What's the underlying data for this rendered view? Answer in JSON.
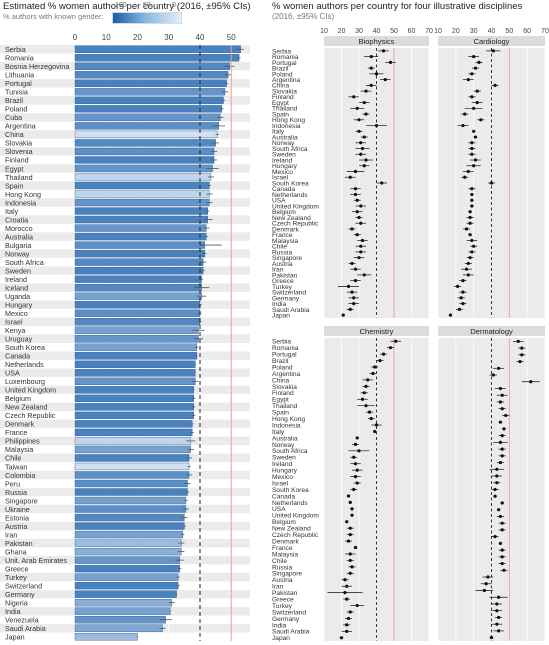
{
  "left": {
    "title": "Estimated % women authors per country (2016, ±95% CIs)",
    "legend_label": "% authors with known gender:",
    "legend_ticks": [
      "100",
      "50",
      "0"
    ],
    "accent_color": "#3a7cc0",
    "ref_color": "#e8a090"
  },
  "right": {
    "title": "% women authors per country for four illustrative disciplines",
    "subtitle": "(2016, ±95% CIs)"
  },
  "chart_data": [
    {
      "type": "bar",
      "orientation": "horizontal",
      "title": "Estimated % women authors per country (2016, ±95% CIs)",
      "xlabel": "",
      "ylabel": "",
      "xlim": [
        0,
        56
      ],
      "xticks": [
        0,
        10,
        20,
        30,
        40,
        50
      ],
      "reference_lines": [
        {
          "value": 40,
          "style": "dashed"
        },
        {
          "value": 50,
          "style": "solid-light"
        }
      ],
      "categories": [
        "Serbia",
        "Romania",
        "Bosnia Herzegovina",
        "Lithuania",
        "Portugal",
        "Tunisia",
        "Brazil",
        "Poland",
        "Cuba",
        "Argentina",
        "China",
        "Slovakia",
        "Slovenia",
        "Finland",
        "Egypt",
        "Thailand",
        "Spain",
        "Hong Kong",
        "Indonesia",
        "Italy",
        "Croatia",
        "Morocco",
        "Australia",
        "Bulgaria",
        "Norway",
        "South Africa",
        "Sweden",
        "Ireland",
        "Iceland",
        "Uganda",
        "Hungary",
        "Mexico",
        "Israel",
        "Kenya",
        "Uruguay",
        "South Korea",
        "Canada",
        "Netherlands",
        "USA",
        "Luxembourg",
        "United Kingdom",
        "Belgium",
        "New Zealand",
        "Czech Republic",
        "Denmark",
        "France",
        "Philippines",
        "Malaysia",
        "Chile",
        "Taiwan",
        "Colombia",
        "Peru",
        "Russia",
        "Singapore",
        "Ukraine",
        "Estonia",
        "Austria",
        "Iran",
        "Pakistan",
        "Ghana",
        "Unit. Arab Emirates",
        "Greece",
        "Turkey",
        "Switzerland",
        "Germany",
        "Nigeria",
        "India",
        "Venezuela",
        "Saudi Arabia",
        "Japan"
      ],
      "values": [
        53,
        52.5,
        49.5,
        49,
        48.5,
        48,
        47.5,
        47,
        46.5,
        46,
        45.5,
        45,
        44.5,
        44.5,
        44,
        43.5,
        43,
        43,
        43,
        42.5,
        42.5,
        42,
        42,
        41.5,
        41.5,
        41,
        41,
        40.5,
        40.5,
        40.5,
        40,
        40,
        40,
        39.5,
        39.5,
        39,
        39,
        38.5,
        38.5,
        38.5,
        38,
        38,
        38,
        38,
        37.5,
        37.5,
        37,
        37,
        36.5,
        36.5,
        36.5,
        36,
        36,
        35.5,
        35.5,
        35,
        35,
        34.5,
        34,
        34,
        33.5,
        33.5,
        33,
        33,
        32.5,
        31,
        30.5,
        29,
        28,
        20
      ],
      "ci_low": [
        52,
        52,
        48,
        48,
        48,
        47,
        47,
        46.5,
        45.5,
        44,
        45,
        44,
        43.5,
        43.5,
        42,
        42.5,
        42.5,
        42,
        42,
        42,
        41,
        41,
        41.5,
        40,
        41,
        40,
        40.5,
        40,
        38,
        39,
        39.5,
        39.5,
        39.5,
        37.5,
        38,
        38.5,
        38.8,
        38.2,
        38.4,
        37.5,
        37.8,
        37.5,
        37.5,
        37.5,
        37,
        37,
        35.5,
        36,
        35.5,
        36,
        35.5,
        35,
        35.5,
        35,
        34.5,
        34,
        34.5,
        34,
        33,
        33,
        32,
        33,
        32.5,
        32.5,
        32.3,
        30,
        30.3,
        27,
        27,
        19.8
      ],
      "ci_high": [
        54,
        53,
        51,
        50,
        49,
        49,
        48,
        47.5,
        47.5,
        48,
        46,
        46,
        45.5,
        45.5,
        46,
        44.5,
        43.5,
        44,
        44,
        43,
        44,
        43,
        42.5,
        47,
        42,
        42,
        41.5,
        41,
        43,
        42,
        40.5,
        40.5,
        40.5,
        41.5,
        41,
        39.5,
        39.2,
        38.8,
        38.6,
        39.5,
        38.2,
        38.5,
        38.5,
        38.5,
        38,
        38,
        38.5,
        38,
        37.5,
        37,
        37.5,
        37,
        36.5,
        36,
        36.5,
        36,
        35.5,
        35,
        35,
        35,
        35,
        34,
        33.5,
        33.5,
        32.7,
        32,
        30.7,
        31,
        29,
        20.2
      ],
      "known_gender_pct": [
        85,
        85,
        80,
        80,
        85,
        70,
        85,
        85,
        70,
        75,
        10,
        80,
        75,
        85,
        70,
        20,
        85,
        20,
        70,
        85,
        85,
        70,
        85,
        75,
        85,
        80,
        85,
        85,
        80,
        60,
        85,
        75,
        80,
        60,
        70,
        60,
        85,
        85,
        85,
        70,
        85,
        85,
        85,
        85,
        85,
        85,
        20,
        60,
        85,
        10,
        75,
        75,
        85,
        60,
        75,
        80,
        85,
        60,
        40,
        50,
        70,
        85,
        60,
        85,
        85,
        50,
        60,
        70,
        55,
        40
      ]
    },
    {
      "type": "scatter",
      "subplots": true,
      "title": "% women authors per country for four illustrative disciplines",
      "subtitle": "(2016, ±95% CIs)",
      "xlim": [
        10,
        70
      ],
      "xticks": [
        10,
        20,
        30,
        40,
        50,
        60,
        70
      ],
      "reference_lines": [
        {
          "value": 40,
          "style": "dashed"
        },
        {
          "value": 50,
          "style": "solid-light"
        }
      ],
      "panels": [
        {
          "name": "Biophysics",
          "countries": [
            "Serbia",
            "Romania",
            "Portugal",
            "Brazil",
            "Poland",
            "Argentina",
            "China",
            "Slovakia",
            "Finland",
            "Egypt",
            "Thailand",
            "Spain",
            "Hong Kong",
            "Indonesia",
            "Italy",
            "Australia",
            "Norway",
            "South Africa",
            "Sweden",
            "Ireland",
            "Hungary",
            "Mexico",
            "Israel",
            "South Korea",
            "Canada",
            "Netherlands",
            "USA",
            "United Kingdom",
            "Belgium",
            "New Zealand",
            "Czech Republic",
            "Denmark",
            "France",
            "Malaysia",
            "Chile",
            "Russia",
            "Singapore",
            "Austria",
            "Iran",
            "Pakistan",
            "Greece",
            "Turkey",
            "Switzerland",
            "Germany",
            "India",
            "Saudi Arabia",
            "Japan"
          ],
          "values": [
            44,
            37,
            48,
            37,
            40,
            45,
            37,
            34,
            27,
            33,
            29,
            34,
            30,
            40,
            30,
            33,
            31,
            32,
            31,
            34,
            33,
            28,
            25,
            43,
            28,
            28,
            29,
            31,
            29,
            30,
            31,
            26,
            29,
            32,
            31,
            31,
            30,
            26,
            28,
            33,
            28,
            24,
            26,
            27,
            27,
            25,
            21
          ],
          "ci_half": [
            3,
            4,
            3,
            2,
            4,
            3,
            3,
            3,
            3,
            3,
            4,
            2,
            3,
            6,
            2,
            2,
            3,
            4,
            3,
            4,
            3,
            5,
            3,
            3,
            3,
            3,
            2,
            3,
            3,
            2,
            3,
            2,
            2,
            3,
            3,
            3,
            3,
            2,
            3,
            4,
            3,
            6,
            3,
            3,
            3,
            2,
            1
          ]
        },
        {
          "name": "Cardiology",
          "countries": [
            "Serbia",
            "Romania",
            "Portugal",
            "Brazil",
            "Poland",
            "Argentina",
            "China",
            "Slovakia",
            "Finland",
            "Egypt",
            "Thailand",
            "Spain",
            "Hong Kong",
            "Indonesia",
            "Italy",
            "Australia",
            "Norway",
            "South Africa",
            "Sweden",
            "Ireland",
            "Hungary",
            "Mexico",
            "Israel",
            "South Korea",
            "Canada",
            "Netherlands",
            "USA",
            "United Kingdom",
            "Belgium",
            "New Zealand",
            "Czech Republic",
            "Denmark",
            "France",
            "Malaysia",
            "Chile",
            "Russia",
            "Singapore",
            "Austria",
            "Iran",
            "Pakistan",
            "Greece",
            "Turkey",
            "Switzerland",
            "Germany",
            "India",
            "Saudi Arabia",
            "Japan"
          ],
          "values": [
            41,
            30,
            33,
            31,
            29,
            27,
            42,
            32,
            29,
            32,
            30,
            25,
            34,
            24,
            30,
            31,
            29,
            29,
            29,
            31,
            30,
            27,
            25,
            40,
            29,
            29,
            29,
            29,
            28,
            28,
            28,
            26,
            28,
            29,
            30,
            29,
            28,
            27,
            26,
            27,
            24,
            21,
            24,
            23,
            24,
            22,
            17
          ],
          "ci_half": [
            4,
            3,
            2,
            2,
            2,
            3,
            2,
            2,
            2,
            3,
            5,
            2,
            2,
            3,
            1,
            1,
            2,
            2,
            2,
            3,
            4,
            3,
            2,
            2,
            2,
            1,
            1,
            1,
            1,
            2,
            2,
            2,
            1,
            3,
            2,
            2,
            2,
            2,
            3,
            3,
            2,
            2,
            2,
            2,
            2,
            2,
            1
          ]
        },
        {
          "name": "Chemistry",
          "countries": [
            "Serbia",
            "Romania",
            "Portugal",
            "Brazil",
            "Poland",
            "Argentina",
            "China",
            "Slovakia",
            "Finland",
            "Egypt",
            "Thailand",
            "Spain",
            "Hong Kong",
            "Indonesia",
            "Italy",
            "Australia",
            "Norway",
            "South Africa",
            "Sweden",
            "Ireland",
            "Hungary",
            "Mexico",
            "Israel",
            "South Korea",
            "Canada",
            "Netherlands",
            "USA",
            "United Kingdom",
            "Belgium",
            "New Zealand",
            "Czech Republic",
            "Denmark",
            "France",
            "Malaysia",
            "Chile",
            "Russia",
            "Singapore",
            "Austria",
            "Iran",
            "Pakistan",
            "Greece",
            "Turkey",
            "Switzerland",
            "Germany",
            "India",
            "Saudi Arabia",
            "Japan"
          ],
          "values": [
            51,
            48,
            44,
            42,
            39,
            38,
            35,
            34,
            33,
            32,
            34,
            36,
            37,
            40,
            39,
            29,
            28,
            30,
            27,
            28,
            29,
            28,
            29,
            27,
            24,
            25,
            26,
            26,
            23,
            25,
            25,
            24,
            28,
            25,
            25,
            26,
            25,
            22,
            23,
            22,
            23,
            29,
            25,
            24,
            23,
            23,
            20
          ],
          "ci_half": [
            3,
            2,
            2,
            2,
            2,
            2,
            3,
            2,
            2,
            3,
            5,
            2,
            2,
            3,
            1,
            1,
            2,
            6,
            2,
            3,
            3,
            3,
            2,
            2,
            1,
            1,
            1,
            1,
            1,
            2,
            2,
            2,
            1,
            3,
            2,
            2,
            2,
            2,
            3,
            10,
            2,
            4,
            2,
            2,
            2,
            3,
            1
          ]
        },
        {
          "name": "Dermatology",
          "countries": [
            "Romania",
            "Portugal",
            "Brazil",
            "Poland",
            "China",
            "Slovakia",
            "Finland",
            "Egypt",
            "Thailand",
            "Spain",
            "Hong Kong",
            "Indonesia",
            "Italy",
            "Australia",
            "Norway",
            "South Africa",
            "Sweden",
            "Ireland",
            "Hungary",
            "Mexico",
            "Israel",
            "South Korea",
            "Canada",
            "Netherlands",
            "USA",
            "United Kingdom",
            "Belgium",
            "New Zealand",
            "Czech Republic",
            "Denmark",
            "France",
            "Malaysia",
            "Chile",
            "Russia",
            "Singapore",
            "Austria",
            "Iran",
            "Pakistan",
            "Greece",
            "Turkey",
            "Switzerland",
            "Germany",
            "India",
            "Saudi Arabia",
            "Japan"
          ],
          "values": [
            55,
            57,
            57,
            56,
            44,
            41,
            62,
            45,
            46,
            45,
            46,
            48,
            45,
            47,
            46,
            45,
            46,
            46,
            45,
            43,
            43,
            43,
            42,
            42,
            46,
            44,
            45,
            46,
            46,
            42,
            45,
            46,
            46,
            46,
            47,
            38,
            37,
            36,
            44,
            43,
            43,
            44,
            43,
            44,
            40
          ],
          "ci_half": [
            3,
            2,
            2,
            2,
            3,
            2,
            5,
            3,
            3,
            2,
            2,
            2,
            1,
            1,
            2,
            4,
            2,
            2,
            2,
            4,
            3,
            2,
            2,
            1,
            1,
            1,
            2,
            2,
            2,
            2,
            1,
            2,
            2,
            2,
            2,
            3,
            3,
            5,
            5,
            3,
            3,
            2,
            3,
            3,
            1
          ]
        }
      ],
      "ref_color": "#e8a090"
    }
  ]
}
